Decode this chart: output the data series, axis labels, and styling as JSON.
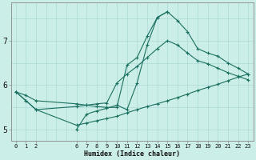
{
  "xlabel": "Humidex (Indice chaleur)",
  "bg_color": "#cceee8",
  "line_color": "#1a7060",
  "grid_color": "#b0ddd8",
  "xlim": [
    -0.5,
    23.5
  ],
  "ylim": [
    4.75,
    7.85
  ],
  "xticks": [
    0,
    1,
    2,
    6,
    7,
    8,
    9,
    10,
    11,
    12,
    13,
    14,
    15,
    16,
    17,
    18,
    19,
    20,
    21,
    22,
    23
  ],
  "yticks": [
    5,
    6,
    7
  ],
  "grid_xticks": [
    0,
    1,
    2,
    3,
    4,
    5,
    6,
    7,
    8,
    9,
    10,
    11,
    12,
    13,
    14,
    15,
    16,
    17,
    18,
    19,
    20,
    21,
    22,
    23
  ],
  "series": [
    {
      "x": [
        0,
        1,
        2,
        6,
        7,
        8,
        9,
        10,
        11,
        12,
        13,
        14,
        15,
        16,
        17,
        18,
        19,
        20,
        21,
        22,
        23
      ],
      "y": [
        5.85,
        5.77,
        5.65,
        5.58,
        5.55,
        5.52,
        5.5,
        5.5,
        6.45,
        6.62,
        7.1,
        7.52,
        7.65,
        7.45,
        7.2,
        6.82,
        6.72,
        6.65,
        6.5,
        6.38,
        6.25
      ]
    },
    {
      "x": [
        0,
        1,
        2,
        6,
        7,
        8,
        9,
        10,
        11,
        12,
        13,
        14,
        15,
        16,
        17,
        18,
        19,
        20,
        21,
        22,
        23
      ],
      "y": [
        5.85,
        5.65,
        5.45,
        5.52,
        5.55,
        5.58,
        5.6,
        6.05,
        6.25,
        6.42,
        6.62,
        6.82,
        7.0,
        6.9,
        6.72,
        6.55,
        6.48,
        6.38,
        6.28,
        6.2,
        6.12
      ]
    },
    {
      "x": [
        0,
        1,
        2,
        6,
        7,
        8,
        9,
        10,
        11,
        12,
        13,
        14,
        15,
        16,
        17,
        18,
        19,
        20,
        21,
        22,
        23
      ],
      "y": [
        5.85,
        5.65,
        5.45,
        5.1,
        5.15,
        5.2,
        5.25,
        5.3,
        5.38,
        5.45,
        5.52,
        5.58,
        5.65,
        5.72,
        5.8,
        5.88,
        5.95,
        6.02,
        6.1,
        6.18,
        6.25
      ]
    },
    {
      "x": [
        6,
        7,
        8,
        9,
        10,
        11,
        12,
        13,
        14,
        15
      ],
      "y": [
        5.0,
        5.35,
        5.42,
        5.48,
        5.55,
        5.45,
        6.05,
        6.9,
        7.52,
        7.65
      ]
    }
  ]
}
